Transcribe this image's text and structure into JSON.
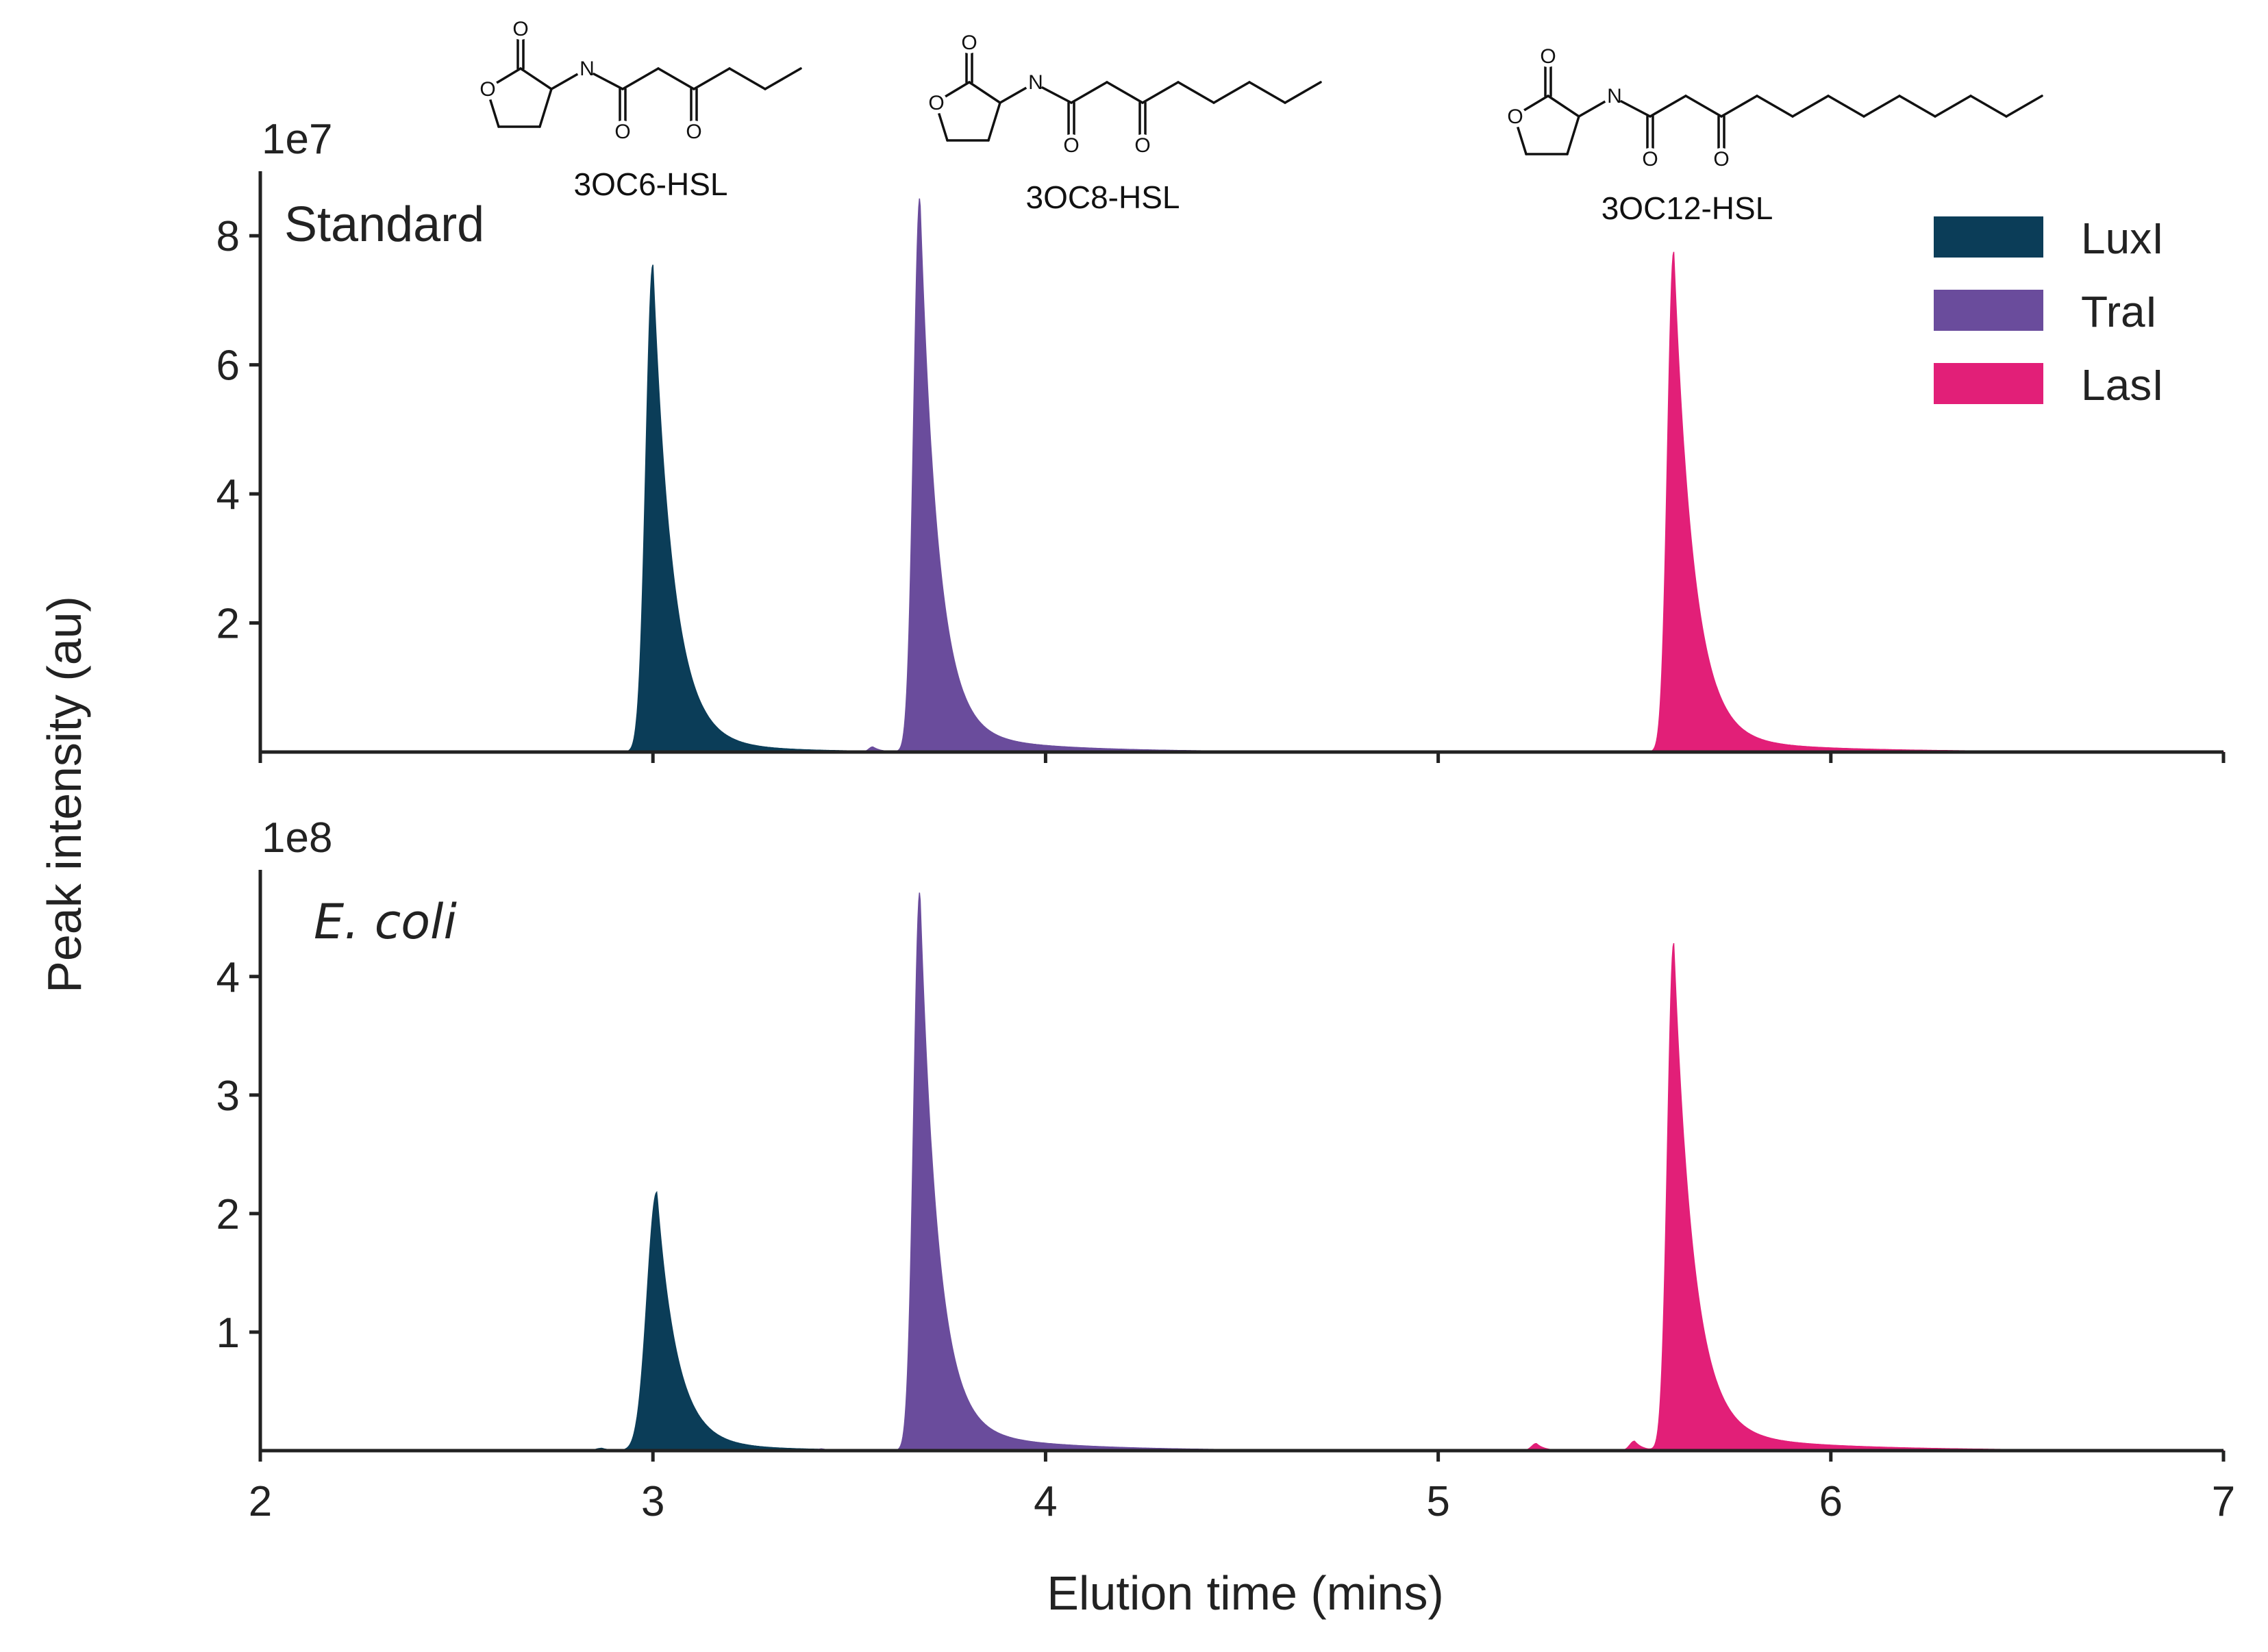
{
  "chart_data": {
    "type": "area",
    "xlabel": "Elution time (mins)",
    "ylabel": "Peak intensity (au)",
    "xlim": [
      2,
      7
    ],
    "x_ticks": [
      "2",
      "3",
      "4",
      "5",
      "6",
      "7"
    ],
    "grid": false,
    "legend_position": "top-right",
    "legend": [
      {
        "name": "LuxI",
        "color": "#0b3d58"
      },
      {
        "name": "TraI",
        "color": "#6a4c9c"
      },
      {
        "name": "LasI",
        "color": "#e21f78"
      }
    ],
    "compound_labels": [
      {
        "name": "3OC6-HSL",
        "series": "LuxI",
        "chain_carbons": 6
      },
      {
        "name": "3OC8-HSL",
        "series": "TraI",
        "chain_carbons": 8
      },
      {
        "name": "3OC12-HSL",
        "series": "LasI",
        "chain_carbons": 12
      }
    ],
    "atom_symbols": {
      "oxygen": "O",
      "nitrogen": "N"
    },
    "panels": [
      {
        "title": "Standard",
        "title_style": "normal",
        "exponent_label": "1e7",
        "scale": 10000000,
        "ylim": [
          0,
          9.0
        ],
        "y_ticks": [
          "2",
          "4",
          "6",
          "8"
        ],
        "series": [
          {
            "name": "LuxI",
            "peaks": [
              {
                "center": 3.0,
                "height": 7.55,
                "sigma_left": 0.018,
                "tau": 0.05,
                "tail_amp": 0.03,
                "tail_tau": 0.2
              }
            ]
          },
          {
            "name": "TraI",
            "peaks": [
              {
                "center": 3.68,
                "height": 8.6,
                "sigma_left": 0.016,
                "tau": 0.045,
                "tail_amp": 0.04,
                "tail_tau": 0.25
              },
              {
                "center": 3.56,
                "height": 0.08,
                "sigma_left": 0.01,
                "tau": 0.02,
                "tail_amp": 0,
                "tail_tau": 0.1
              }
            ]
          },
          {
            "name": "LasI",
            "peaks": [
              {
                "center": 5.6,
                "height": 7.75,
                "sigma_left": 0.016,
                "tau": 0.05,
                "tail_amp": 0.03,
                "tail_tau": 0.3
              }
            ]
          }
        ]
      },
      {
        "title": "E. coli",
        "title_style": "italic",
        "exponent_label": "1e8",
        "scale": 100000000,
        "ylim": [
          0,
          4.9
        ],
        "y_ticks": [
          "1",
          "2",
          "3",
          "4"
        ],
        "series": [
          {
            "name": "LuxI",
            "peaks": [
              {
                "center": 3.01,
                "height": 2.18,
                "sigma_left": 0.025,
                "tau": 0.05,
                "tail_amp": 0.04,
                "tail_tau": 0.2
              },
              {
                "center": 2.87,
                "height": 0.02,
                "sigma_left": 0.015,
                "tau": 0.02,
                "tail_amp": 0,
                "tail_tau": 0.1
              }
            ]
          },
          {
            "name": "TraI",
            "peaks": [
              {
                "center": 3.68,
                "height": 4.72,
                "sigma_left": 0.016,
                "tau": 0.045,
                "tail_amp": 0.045,
                "tail_tau": 0.25
              },
              {
                "center": 3.43,
                "height": 0.015,
                "sigma_left": 0.01,
                "tau": 0.02,
                "tail_amp": 0,
                "tail_tau": 0.1
              }
            ]
          },
          {
            "name": "LasI",
            "peaks": [
              {
                "center": 5.6,
                "height": 4.28,
                "sigma_left": 0.016,
                "tau": 0.05,
                "tail_amp": 0.04,
                "tail_tau": 0.3
              },
              {
                "center": 5.25,
                "height": 0.06,
                "sigma_left": 0.012,
                "tau": 0.02,
                "tail_amp": 0,
                "tail_tau": 0.1
              },
              {
                "center": 5.5,
                "height": 0.08,
                "sigma_left": 0.012,
                "tau": 0.02,
                "tail_amp": 0,
                "tail_tau": 0.1
              }
            ]
          }
        ]
      }
    ]
  }
}
